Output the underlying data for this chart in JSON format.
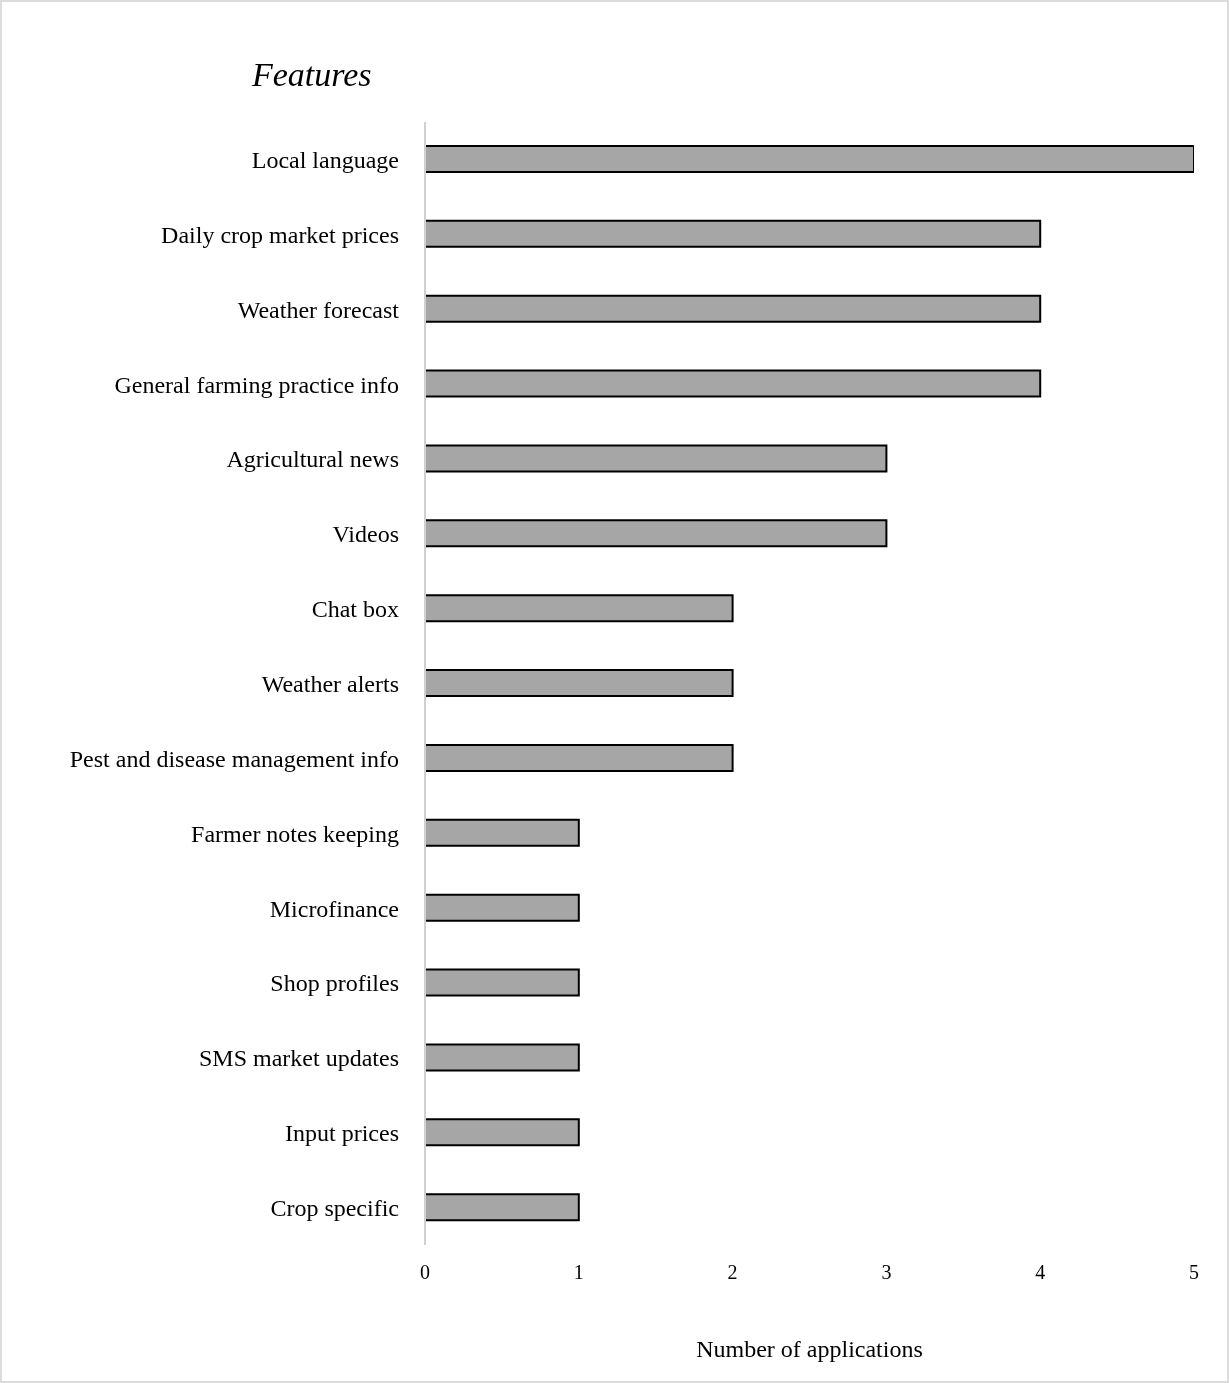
{
  "chart_data": {
    "type": "bar",
    "orientation": "horizontal",
    "ylabel": "Features",
    "xlabel": "Number of applications",
    "categories": [
      "Local language",
      "Daily crop market prices",
      "Weather forecast",
      "General farming practice info",
      "Agricultural news",
      "Videos",
      "Chat box",
      "Weather alerts",
      "Pest and disease management info",
      "Farmer notes keeping",
      "Microfinance",
      "Shop profiles",
      "SMS market updates",
      "Input prices",
      "Crop specific"
    ],
    "values": [
      5,
      4,
      4,
      4,
      3,
      3,
      2,
      2,
      2,
      1,
      1,
      1,
      1,
      1,
      1
    ],
    "color": "#a6a6a6",
    "xlim": [
      0,
      5
    ],
    "xticks": [
      0,
      1,
      2,
      3,
      4,
      5
    ],
    "grid": false
  }
}
